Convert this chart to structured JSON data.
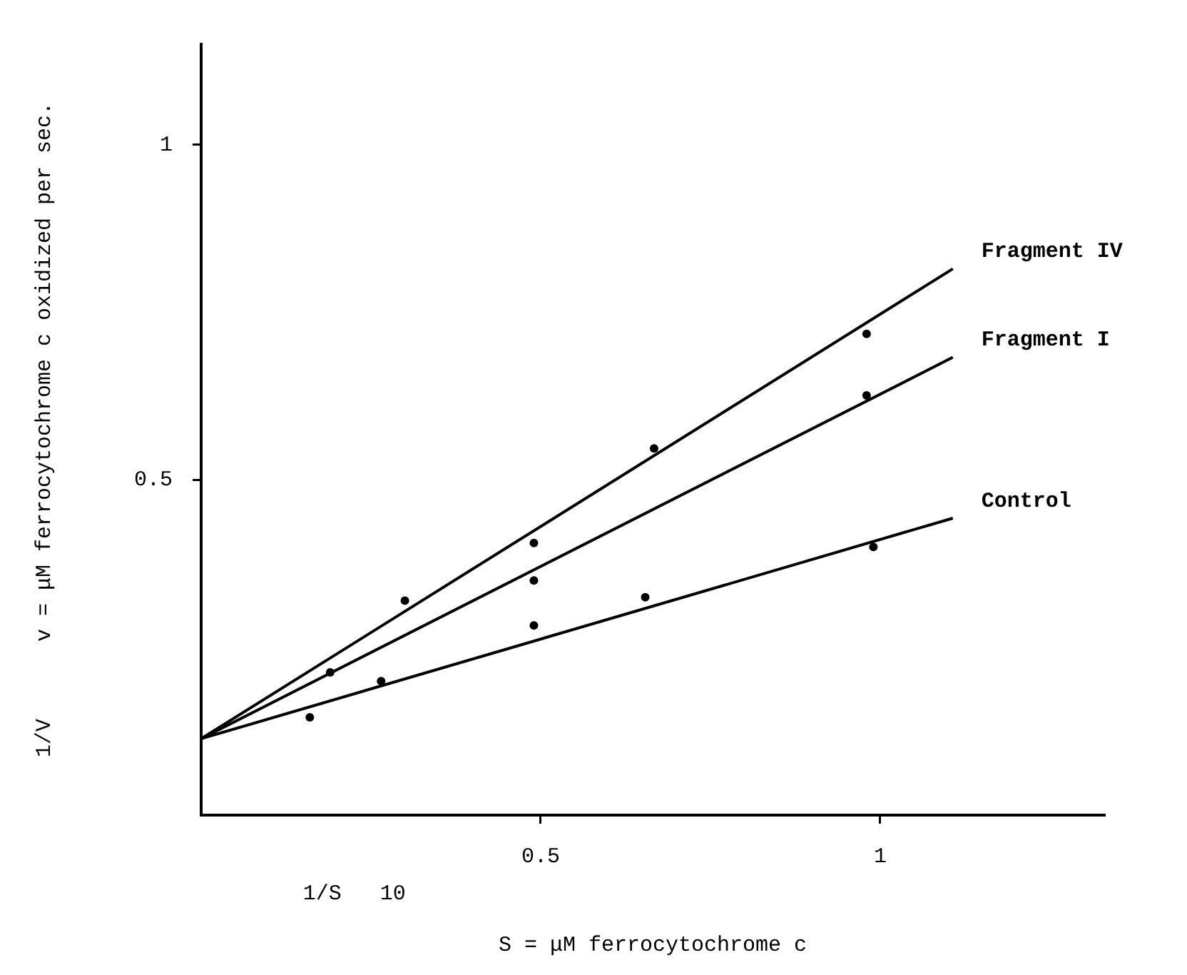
{
  "chart_data": {
    "type": "scatter",
    "xlabel": "S = μM ferrocytochrome c",
    "ylabel": "1/V      v = μM ferrocytochrome c oxidized per sec.",
    "annotations": [
      "1/S   10"
    ],
    "xlim": [
      0,
      1.33
    ],
    "xticks": [
      0.5,
      1
    ],
    "ylim": [
      0,
      1.15
    ],
    "yticks": [
      0.5,
      1
    ],
    "grid": false,
    "legend": false,
    "series": [
      {
        "type": "line",
        "name": "Fragment IV",
        "color": "#000000",
        "marker": "none",
        "x": [
          0,
          1.107
        ],
        "values": [
          0.114,
          0.815
        ]
      },
      {
        "type": "line",
        "name": "Fragment I",
        "color": "#000000",
        "marker": "none",
        "x": [
          0,
          1.107
        ],
        "values": [
          0.114,
          0.683
        ]
      },
      {
        "type": "line",
        "name": "Control",
        "color": "#000000",
        "marker": "none",
        "x": [
          0,
          1.107
        ],
        "values": [
          0.114,
          0.443
        ]
      },
      {
        "type": "scatter",
        "color": "#000000",
        "marker": "circle",
        "x": [
          0.3,
          0.49,
          0.667,
          0.98
        ],
        "values": [
          0.32,
          0.406,
          0.547,
          0.718
        ]
      },
      {
        "type": "scatter",
        "color": "#000000",
        "marker": "circle",
        "x": [
          0.19,
          0.49,
          0.98
        ],
        "values": [
          0.213,
          0.35,
          0.626
        ]
      },
      {
        "type": "scatter",
        "color": "#000000",
        "marker": "circle",
        "x": [
          0.16,
          0.265,
          0.49,
          0.654,
          0.99
        ],
        "values": [
          0.146,
          0.2,
          0.283,
          0.325,
          0.4
        ]
      }
    ]
  }
}
